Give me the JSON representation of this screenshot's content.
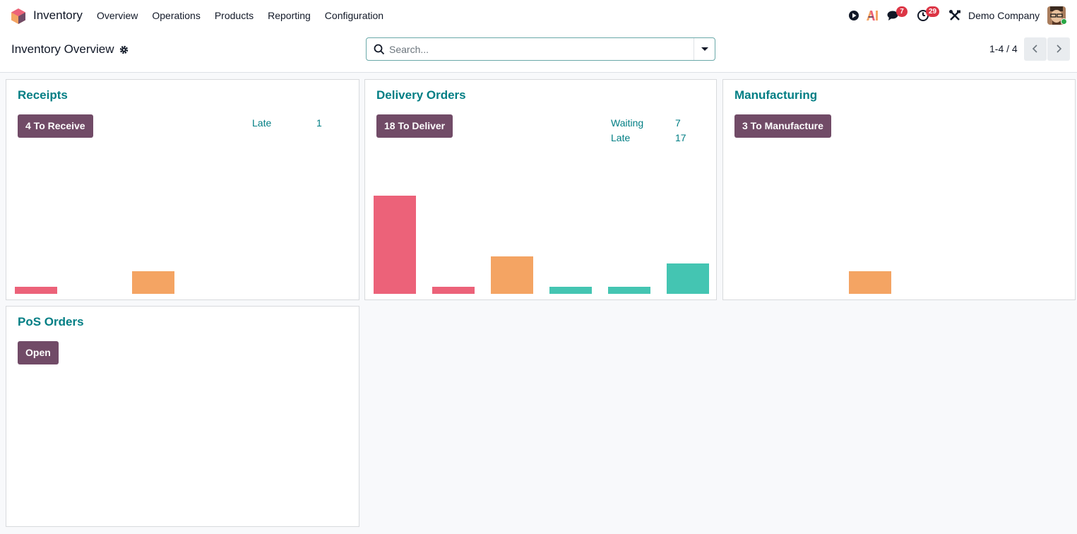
{
  "navbar": {
    "app_name": "Inventory",
    "menu": [
      "Overview",
      "Operations",
      "Products",
      "Reporting",
      "Configuration"
    ],
    "messages_badge": "7",
    "activities_badge": "29",
    "company": "Demo Company",
    "icons": [
      "play-icon",
      "ai-icon",
      "chat-icon",
      "clock-icon",
      "tools-icon"
    ]
  },
  "control_panel": {
    "title": "Inventory Overview",
    "search_placeholder": "Search...",
    "pager": "1-4 / 4"
  },
  "colors": {
    "late": "#ec6279",
    "today": "#f4a463",
    "future": "#44c5b2",
    "action": "#714b67",
    "title": "#017e84"
  },
  "cards": [
    {
      "title": "Receipts",
      "button": "4 To Receive",
      "stats": [
        {
          "label": "Late",
          "value": "1"
        }
      ],
      "bars": [
        {
          "value": 1,
          "color": "late"
        },
        {
          "value": 0,
          "color": "late"
        },
        {
          "value": 3,
          "color": "today"
        },
        {
          "value": 0,
          "color": "future"
        },
        {
          "value": 0,
          "color": "future"
        },
        {
          "value": 0,
          "color": "future"
        }
      ]
    },
    {
      "title": "Delivery Orders",
      "button": "18 To Deliver",
      "stats": [
        {
          "label": "Waiting",
          "value": "7"
        },
        {
          "label": "Late",
          "value": "17"
        }
      ],
      "bars": [
        {
          "value": 13,
          "color": "late"
        },
        {
          "value": 1,
          "color": "late"
        },
        {
          "value": 5,
          "color": "today"
        },
        {
          "value": 1,
          "color": "future"
        },
        {
          "value": 1,
          "color": "future"
        },
        {
          "value": 4,
          "color": "future"
        }
      ]
    },
    {
      "title": "Manufacturing",
      "button": "3 To Manufacture",
      "stats": [],
      "bars": [
        {
          "value": 0,
          "color": "late"
        },
        {
          "value": 0,
          "color": "late"
        },
        {
          "value": 3,
          "color": "today"
        },
        {
          "value": 0,
          "color": "future"
        },
        {
          "value": 0,
          "color": "future"
        },
        {
          "value": 0,
          "color": "future"
        }
      ]
    },
    {
      "title": "PoS Orders",
      "button": "Open",
      "stats": [],
      "bars": []
    }
  ]
}
